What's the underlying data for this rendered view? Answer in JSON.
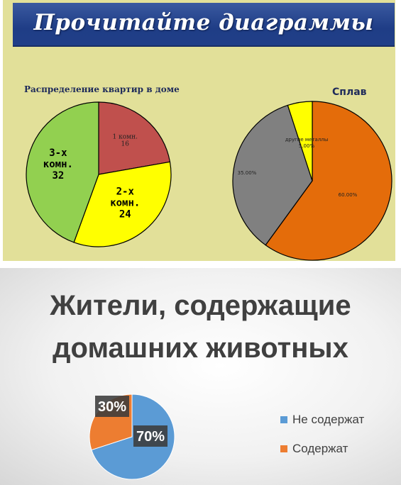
{
  "slide1": {
    "banner_title": "Прочитайте диаграммы"
  },
  "slide2": {
    "title_line1": "Жители, содержащие",
    "title_line2": "домашних животных",
    "legend": [
      {
        "label": "Не содержат",
        "color": "#5b9bd5"
      },
      {
        "label": "Содержат",
        "color": "#ed7d31"
      }
    ]
  },
  "chart_data": [
    {
      "type": "pie",
      "title": "Распределение квартир в доме",
      "slices": [
        {
          "label": "1 комн.",
          "value": 16,
          "color": "#c0504d"
        },
        {
          "label": "2-х комн.",
          "value": 24,
          "color": "#ffff00"
        },
        {
          "label": "3-х комн.",
          "value": 32,
          "color": "#92d050"
        }
      ]
    },
    {
      "type": "pie",
      "title": "Сплав",
      "slices": [
        {
          "label": "",
          "value": 60,
          "display": "60.00%",
          "color": "#e46c0a"
        },
        {
          "label": "",
          "value": 35,
          "display": "35.00%",
          "color": "#808080"
        },
        {
          "label": "другие металлы",
          "value": 5,
          "display": "5.00%",
          "color": "#ffff00"
        }
      ]
    },
    {
      "type": "pie",
      "title": "",
      "slices": [
        {
          "label": "Не содержат",
          "value": 70,
          "display": "70%",
          "color": "#5b9bd5"
        },
        {
          "label": "Содержат",
          "value": 30,
          "display": "30%",
          "color": "#ed7d31"
        }
      ]
    }
  ]
}
